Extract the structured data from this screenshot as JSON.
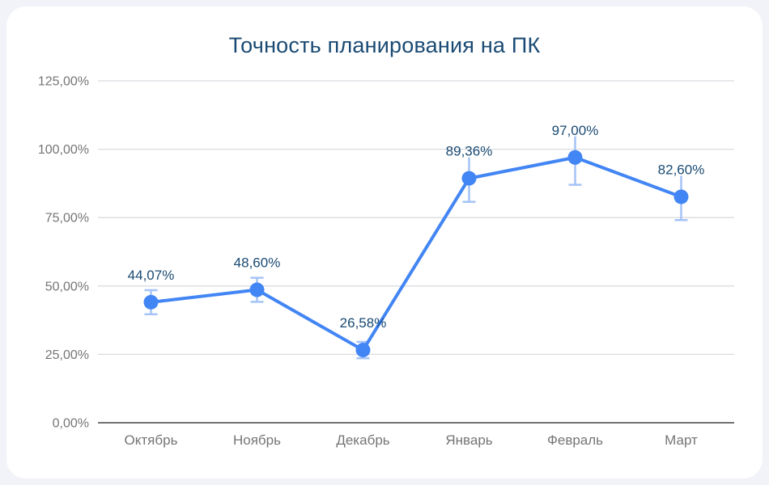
{
  "colors": {
    "page_bg": "#F2F3F8",
    "card_bg": "#FFFFFF",
    "title": "#1A4A73",
    "line": "#4285F4",
    "point": "#4285F4",
    "error_bar": "#A5C3F7",
    "data_label": "#1A4A73",
    "axis_label": "#757575",
    "gridline": "#DADCE0",
    "axis_line": "#707070"
  },
  "chart_data": {
    "type": "line",
    "title": "Точность планирования на ПК",
    "xlabel": "",
    "ylabel": "",
    "grid": true,
    "legend_position": "none",
    "categories": [
      "Октябрь",
      "Ноябрь",
      "Декабрь",
      "Январь",
      "Февраль",
      "Март"
    ],
    "series": [
      {
        "name": "Точность планирования на ПК",
        "values": [
          44.07,
          48.6,
          26.58,
          89.36,
          97.0,
          82.6
        ],
        "labels": [
          "44,07%",
          "48,60%",
          "26,58%",
          "89,36%",
          "97,00%",
          "82,60%"
        ],
        "error_bars": [
          4.4,
          4.4,
          3.0,
          8.6,
          10.0,
          8.5
        ]
      }
    ],
    "y_axis": {
      "min": 0,
      "max": 125,
      "ticks": [
        {
          "value": 125,
          "label": "125,00%"
        },
        {
          "value": 100,
          "label": "100,00%"
        },
        {
          "value": 75,
          "label": "75,00%"
        },
        {
          "value": 50,
          "label": "50,00%"
        },
        {
          "value": 25,
          "label": "25,00%"
        },
        {
          "value": 0,
          "label": "0,00%"
        }
      ]
    }
  }
}
